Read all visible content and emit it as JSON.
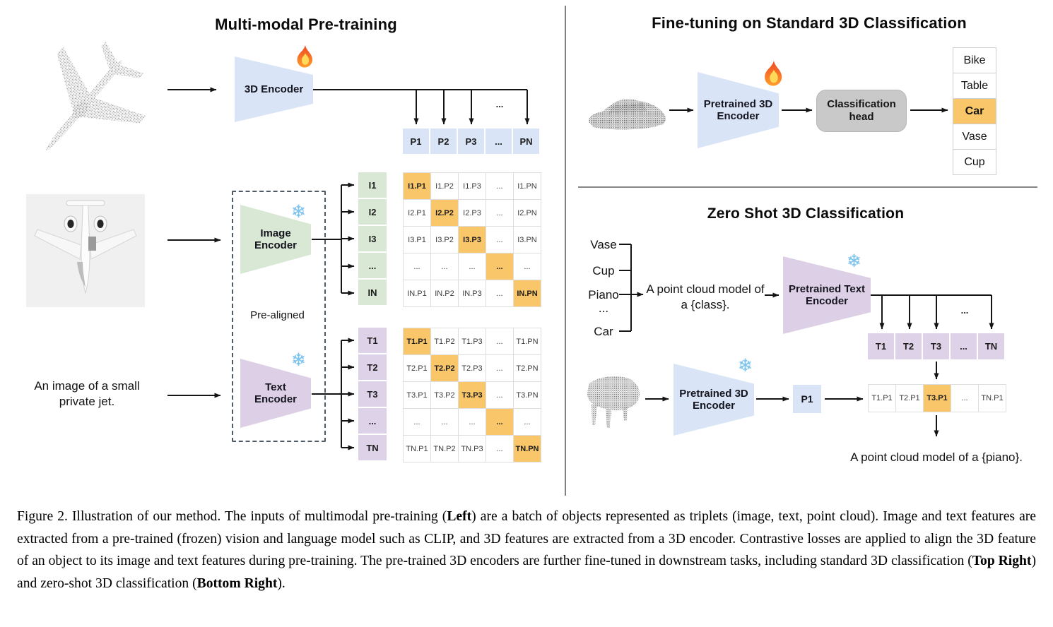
{
  "icons": {
    "snowflake": "❄"
  },
  "left_panel": {
    "title": "Multi-modal Pre-training",
    "encoder_3d": {
      "label": "3D Encoder"
    },
    "image_encoder": {
      "line1": "Image",
      "line2": "Encoder"
    },
    "text_encoder": {
      "line1": "Text",
      "line2": "Encoder"
    },
    "pre_aligned_label": "Pre-aligned",
    "image_caption_line1": "An image of a small",
    "image_caption_line2": "private jet.",
    "branch_ellipsis": "...",
    "p_row": [
      "P1",
      "P2",
      "P3",
      "...",
      "PN"
    ],
    "i_labels": [
      "I1",
      "I2",
      "I3",
      "...",
      "IN"
    ],
    "t_labels": [
      "T1",
      "T2",
      "T3",
      "...",
      "TN"
    ],
    "image_matrix": [
      [
        "I1.P1",
        "I1.P2",
        "I1.P3",
        "...",
        "I1.PN"
      ],
      [
        "I2.P1",
        "I2.P2",
        "I2.P3",
        "...",
        "I2.PN"
      ],
      [
        "I3.P1",
        "I3.P2",
        "I3.P3",
        "...",
        "I3.PN"
      ],
      [
        "...",
        "...",
        "...",
        "...",
        "..."
      ],
      [
        "IN.P1",
        "IN.P2",
        "IN.P3",
        "...",
        "IN.PN"
      ]
    ],
    "text_matrix": [
      [
        "T1.P1",
        "T1.P2",
        "T1.P3",
        "...",
        "T1.PN"
      ],
      [
        "T2.P1",
        "T2.P2",
        "T2.P3",
        "...",
        "T2.PN"
      ],
      [
        "T3.P1",
        "T3.P2",
        "T3.P3",
        "...",
        "T3.PN"
      ],
      [
        "...",
        "...",
        "...",
        "...",
        "..."
      ],
      [
        "TN.P1",
        "TN.P2",
        "TN.P3",
        "...",
        "TN.PN"
      ]
    ]
  },
  "top_right": {
    "title": "Fine-tuning on Standard 3D Classification",
    "encoder": {
      "line1": "Pretrained 3D",
      "line2": "Encoder"
    },
    "head": {
      "line1": "Classification",
      "line2": "head"
    },
    "classes": [
      "Bike",
      "Table",
      "Car",
      "Vase",
      "Cup"
    ],
    "highlighted_class": "Car"
  },
  "bottom_right": {
    "title": "Zero Shot 3D Classification",
    "prompt_classes": [
      "Vase",
      "Cup",
      "Piano",
      "...",
      "Car"
    ],
    "prompt_line1": "A point cloud model of",
    "prompt_line2": "a {class}.",
    "branch_ellipsis": "...",
    "text_encoder": {
      "line1": "Pretrained Text",
      "line2": "Encoder"
    },
    "encoder_3d": {
      "line1": "Pretrained 3D",
      "line2": "Encoder"
    },
    "p1_label": "P1",
    "t_row": [
      "T1",
      "T2",
      "T3",
      "...",
      "TN"
    ],
    "sim_row": [
      "T1.P1",
      "T2.P1",
      "T3.P1",
      "...",
      "TN.P1"
    ],
    "sim_highlight_index": 2,
    "result_text": "A point cloud model of a {piano}."
  },
  "figure_caption": {
    "runs": [
      {
        "text": "Figure 2. Illustration of our method. The inputs of multimodal pre-training (",
        "bold": false
      },
      {
        "text": "Left",
        "bold": true
      },
      {
        "text": ") are a batch of objects represented as triplets (image, text, point cloud). Image and text features are extracted from a pre-trained (frozen) vision and language model such as CLIP, and 3D features are extracted from a 3D encoder. Contrastive losses are applied to align the 3D feature of an object to its image and text features during pre-training. The pre-trained 3D encoders are further fine-tuned in downstream tasks, including standard 3D classification (",
        "bold": false
      },
      {
        "text": "Top Right",
        "bold": true
      },
      {
        "text": ") and zero-shot 3D classification (",
        "bold": false
      },
      {
        "text": "Bottom Right",
        "bold": true
      },
      {
        "text": ").",
        "bold": false
      }
    ]
  },
  "colors": {
    "encoder_blue": "#d9e5f7",
    "encoder_green": "#d8e8d4",
    "encoder_purple": "#ddd0e6",
    "highlight_orange": "#f9c669",
    "head_gray": "#c9c9c9",
    "matrix_border": "#dedede",
    "dashed_border": "#4e5a66"
  }
}
